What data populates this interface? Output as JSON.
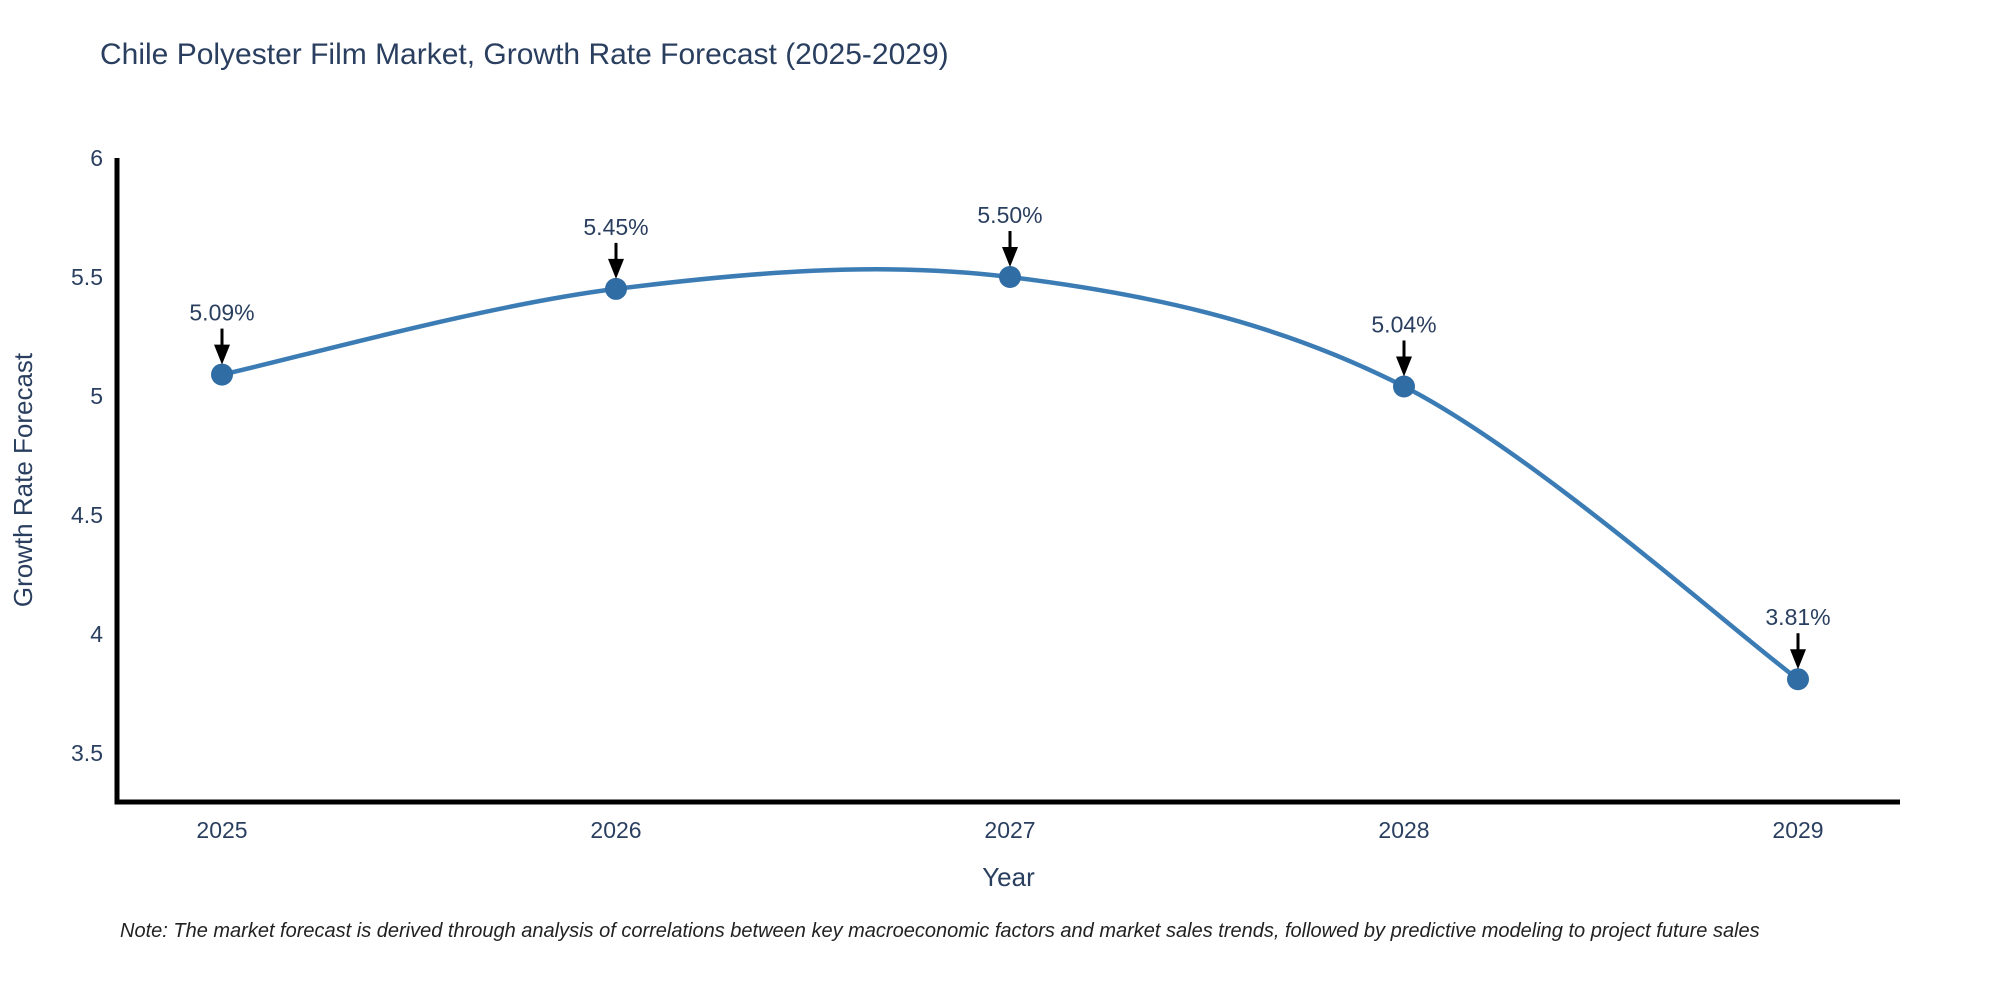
{
  "title": "Chile Polyester Film Market, Growth Rate Forecast (2025-2029)",
  "note": "Note: The market forecast is derived through analysis of correlations between key macroeconomic factors and market sales trends, followed by predictive modeling to project future sales",
  "chart_data": {
    "type": "line",
    "title": "Chile Polyester Film Market, Growth Rate Forecast (2025-2029)",
    "xlabel": "Year",
    "ylabel": "Growth Rate Forecast",
    "categories": [
      "2025",
      "2026",
      "2027",
      "2028",
      "2029"
    ],
    "values": [
      5.09,
      5.45,
      5.5,
      5.04,
      3.81
    ],
    "point_labels": [
      "5.09%",
      "5.45%",
      "5.50%",
      "5.04%",
      "3.81%"
    ],
    "yticks": [
      "6",
      "5.5",
      "5",
      "4.5",
      "4",
      "3.5"
    ],
    "ytick_values": [
      6,
      5.5,
      5,
      4.5,
      4,
      3.5
    ],
    "ylim": [
      3.29,
      6.0
    ],
    "line_shape": "spline",
    "grid": false,
    "legend": "none",
    "colors": {
      "line": "#3c7cb5",
      "marker": "#316da5",
      "axis": "#000000",
      "text": "#2a3f5f",
      "arrow": "#000000",
      "note": "#222222",
      "background": "#ffffff"
    }
  }
}
